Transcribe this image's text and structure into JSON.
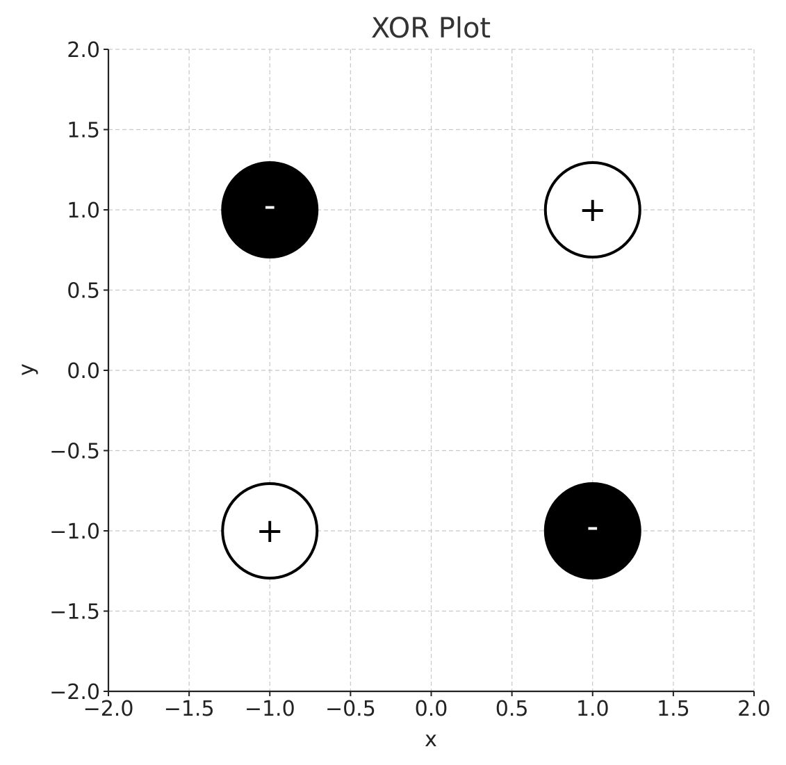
{
  "chart_data": {
    "type": "scatter",
    "title": "XOR Plot",
    "xlabel": "x",
    "ylabel": "y",
    "xlim": [
      -2.0,
      2.0
    ],
    "ylim": [
      -2.0,
      2.0
    ],
    "x_ticks": [
      "−2.0",
      "−1.5",
      "−1.0",
      "−0.5",
      "0.0",
      "0.5",
      "1.0",
      "1.5",
      "2.0"
    ],
    "y_ticks": [
      "2.0",
      "1.5",
      "1.0",
      "0.5",
      "0.0",
      "−0.5",
      "−1.0",
      "−1.5",
      "−2.0"
    ],
    "grid": true,
    "points": [
      {
        "x": -1.0,
        "y": 1.0,
        "label": "-",
        "filled": true
      },
      {
        "x": 1.0,
        "y": 1.0,
        "label": "+",
        "filled": false
      },
      {
        "x": -1.0,
        "y": -1.0,
        "label": "+",
        "filled": false
      },
      {
        "x": 1.0,
        "y": -1.0,
        "label": "-",
        "filled": true
      }
    ],
    "colors": {
      "filled": "#000000",
      "hollow_fill": "#ffffff",
      "outline": "#000000",
      "filled_label": "#ffffff",
      "hollow_label": "#000000"
    }
  }
}
